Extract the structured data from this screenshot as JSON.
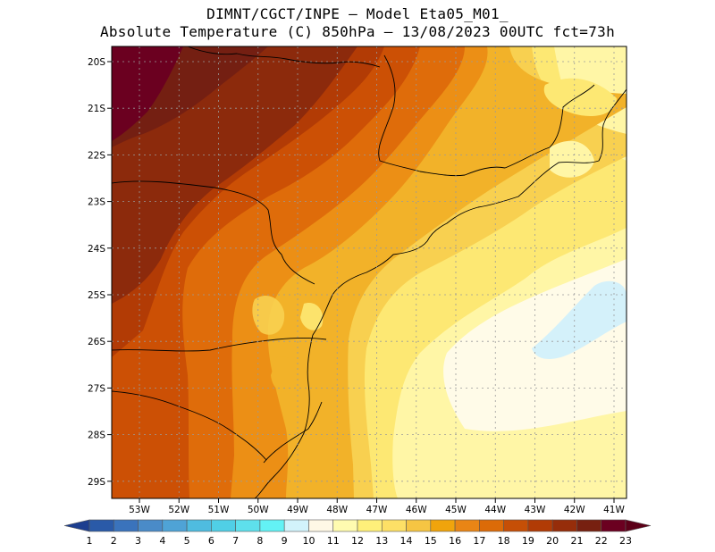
{
  "title": {
    "line1": "DIMNT/CGCT/INPE –  Model Eta05_M01_",
    "line2": "Absolute Temperature (C) 850hPa –  13/08/2023 00UTC fct=73h"
  },
  "map": {
    "latitude_labels": [
      "20S",
      "21S",
      "22S",
      "23S",
      "24S",
      "25S",
      "26S",
      "27S",
      "28S",
      "29S"
    ],
    "longitude_labels": [
      "53W",
      "52W",
      "51W",
      "50W",
      "49W",
      "48W",
      "47W",
      "46W",
      "45W",
      "44W",
      "43W",
      "42W",
      "41W"
    ]
  },
  "colorbar": {
    "labels": [
      "1",
      "2",
      "3",
      "4",
      "5",
      "6",
      "7",
      "8",
      "9",
      "10",
      "11",
      "12",
      "13",
      "14",
      "15",
      "16",
      "17",
      "18",
      "19",
      "20",
      "21",
      "22",
      "23"
    ],
    "colors": [
      "#1d3e8f",
      "#2a5aa8",
      "#3a73bc",
      "#4a8bc8",
      "#4fa3d6",
      "#4fbce0",
      "#50cfe6",
      "#5ee0ec",
      "#63f2f5",
      "#d2f3fb",
      "#fff8e6",
      "#fffbb0",
      "#fff07a",
      "#fde066",
      "#f6c543",
      "#f0a40c",
      "#e98515",
      "#dc6b08",
      "#c64f06",
      "#b13b05",
      "#962d0a",
      "#772010",
      "#6b0020",
      "#5c0018"
    ]
  }
}
